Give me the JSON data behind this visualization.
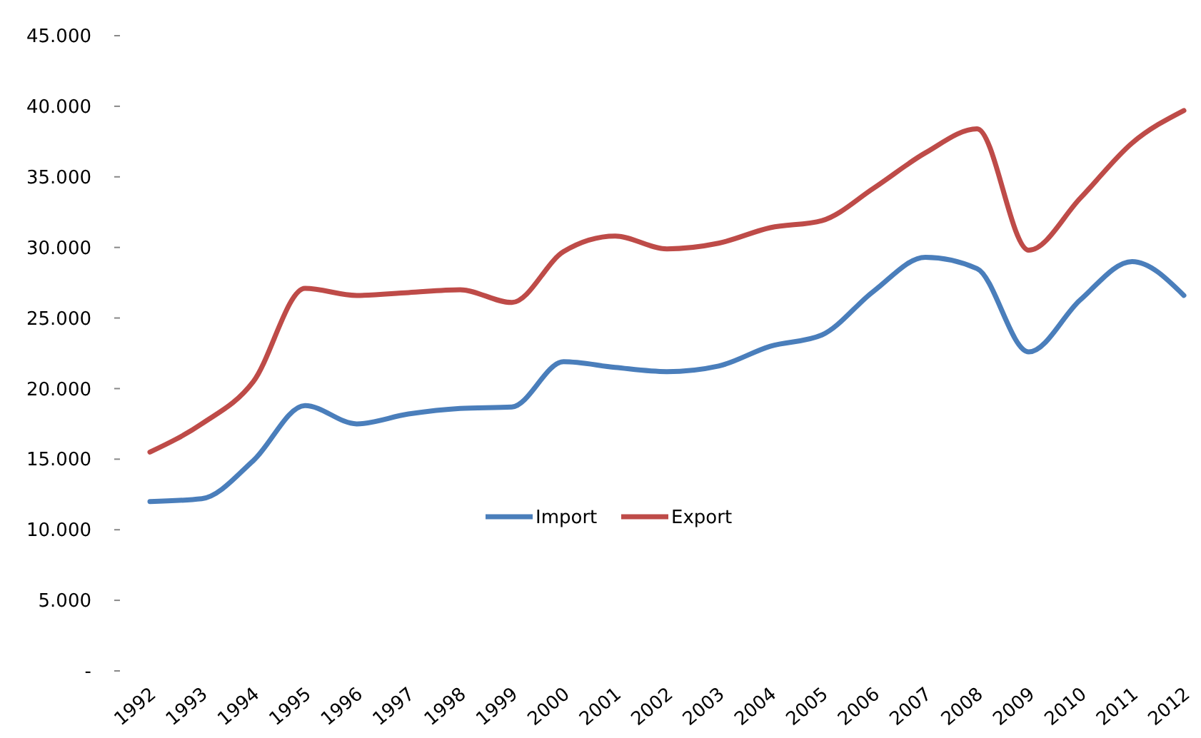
{
  "chart_data": {
    "type": "line",
    "categories": [
      "1992",
      "1993",
      "1994",
      "1995",
      "1996",
      "1997",
      "1998",
      "1999",
      "2000",
      "2001",
      "2002",
      "2003",
      "2004",
      "2005",
      "2006",
      "2007",
      "2008",
      "2009",
      "2010",
      "2011",
      "2012"
    ],
    "series": [
      {
        "name": "Import",
        "color": "#4a7ebb",
        "values": [
          12000,
          12200,
          14900,
          18800,
          17500,
          18200,
          18600,
          18700,
          21900,
          21500,
          21200,
          21600,
          23000,
          23800,
          26900,
          29300,
          28500,
          22600,
          26300,
          29000,
          26600
        ]
      },
      {
        "name": "Export",
        "color": "#be4b48",
        "values": [
          15500,
          17500,
          20500,
          27100,
          26600,
          26800,
          27000,
          26100,
          29700,
          30800,
          29900,
          30300,
          31400,
          31900,
          34200,
          36700,
          38400,
          29800,
          33500,
          37400,
          39700
        ]
      }
    ],
    "ylim": [
      0,
      45000
    ],
    "yticks": [
      {
        "value": 0,
        "label": "-"
      },
      {
        "value": 5000,
        "label": "5.000"
      },
      {
        "value": 10000,
        "label": "10.000"
      },
      {
        "value": 15000,
        "label": "15.000"
      },
      {
        "value": 20000,
        "label": "20.000"
      },
      {
        "value": 25000,
        "label": "25.000"
      },
      {
        "value": 30000,
        "label": "30.000"
      },
      {
        "value": 35000,
        "label": "35.000"
      },
      {
        "value": 40000,
        "label": "40.000"
      },
      {
        "value": 45000,
        "label": "45.000"
      }
    ],
    "legend": "center",
    "grid": false,
    "marker": "none",
    "line_style": "solid"
  }
}
